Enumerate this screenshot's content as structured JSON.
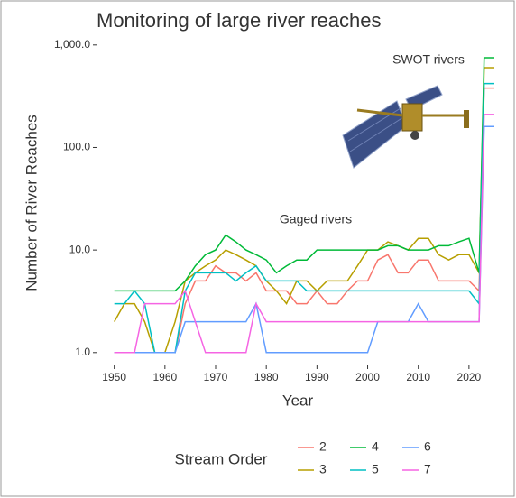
{
  "chart_data": {
    "type": "line",
    "title": "Monitoring of large river reaches",
    "xlabel": "Year",
    "ylabel": "Number of River Reaches",
    "annotations": [
      "SWOT rivers",
      "Gaged rivers"
    ],
    "legend_title": "Stream Order",
    "log_y": true,
    "xlim": [
      1946.5,
      2027.5
    ],
    "xticks": [
      1950,
      1960,
      1970,
      1980,
      1990,
      2000,
      2010,
      2020
    ],
    "ylim": [
      0.75,
      1350
    ],
    "yticks": [
      {
        "value": 1,
        "label": "1.0"
      },
      {
        "value": 10,
        "label": "10.0"
      },
      {
        "value": 100,
        "label": "100.0"
      },
      {
        "value": 1000,
        "label": "1,000.0"
      }
    ],
    "x": [
      1950,
      1952,
      1954,
      1956,
      1958,
      1960,
      1962,
      1964,
      1966,
      1968,
      1970,
      1972,
      1974,
      1976,
      1978,
      1980,
      1982,
      1984,
      1986,
      1988,
      1990,
      1992,
      1994,
      1996,
      1998,
      2000,
      2002,
      2004,
      2006,
      2008,
      2010,
      2012,
      2014,
      2016,
      2018,
      2020,
      2022,
      2023,
      2025
    ],
    "series": [
      {
        "name": "2",
        "color": "#F8766D",
        "values": [
          1,
          1,
          1,
          1,
          1,
          1,
          1,
          3,
          5,
          5,
          7,
          6,
          6,
          5,
          6,
          4,
          4,
          4,
          3,
          3,
          4,
          3,
          3,
          4,
          5,
          5,
          8,
          9,
          6,
          6,
          8,
          8,
          5,
          5,
          5,
          5,
          4,
          380,
          380
        ]
      },
      {
        "name": "3",
        "color": "#B79F00",
        "values": [
          2,
          3,
          3,
          2,
          1,
          1,
          2,
          5,
          6,
          7,
          8,
          10,
          9,
          8,
          7,
          5,
          4,
          3,
          5,
          5,
          4,
          5,
          5,
          5,
          7,
          10,
          10,
          12,
          11,
          10,
          13,
          13,
          9,
          8,
          9,
          9,
          6,
          600,
          600
        ]
      },
      {
        "name": "4",
        "color": "#00BA38",
        "values": [
          4,
          4,
          4,
          4,
          4,
          4,
          4,
          5,
          7,
          9,
          10,
          14,
          12,
          10,
          9,
          8,
          6,
          7,
          8,
          8,
          10,
          10,
          10,
          10,
          10,
          10,
          10,
          11,
          11,
          10,
          10,
          10,
          11,
          11,
          12,
          13,
          6,
          750,
          750
        ]
      },
      {
        "name": "5",
        "color": "#00BFC4",
        "values": [
          3,
          3,
          4,
          3,
          1,
          1,
          1,
          4,
          6,
          6,
          6,
          6,
          5,
          6,
          7,
          5,
          5,
          5,
          5,
          4,
          4,
          4,
          4,
          4,
          4,
          4,
          4,
          4,
          4,
          4,
          4,
          4,
          4,
          4,
          4,
          4,
          3,
          420,
          420
        ]
      },
      {
        "name": "6",
        "color": "#619CFF",
        "values": [
          1,
          1,
          1,
          1,
          1,
          1,
          1,
          2,
          2,
          2,
          2,
          2,
          2,
          2,
          3,
          1,
          1,
          1,
          1,
          1,
          1,
          1,
          1,
          1,
          1,
          1,
          2,
          2,
          2,
          2,
          3,
          2,
          2,
          2,
          2,
          2,
          2,
          160,
          160
        ]
      },
      {
        "name": "7",
        "color": "#F564E3",
        "values": [
          1,
          1,
          1,
          3,
          3,
          3,
          3,
          4,
          2,
          1,
          1,
          1,
          1,
          1,
          3,
          2,
          2,
          2,
          2,
          2,
          2,
          2,
          2,
          2,
          2,
          2,
          2,
          2,
          2,
          2,
          2,
          2,
          2,
          2,
          2,
          2,
          2,
          210,
          210
        ]
      }
    ]
  }
}
